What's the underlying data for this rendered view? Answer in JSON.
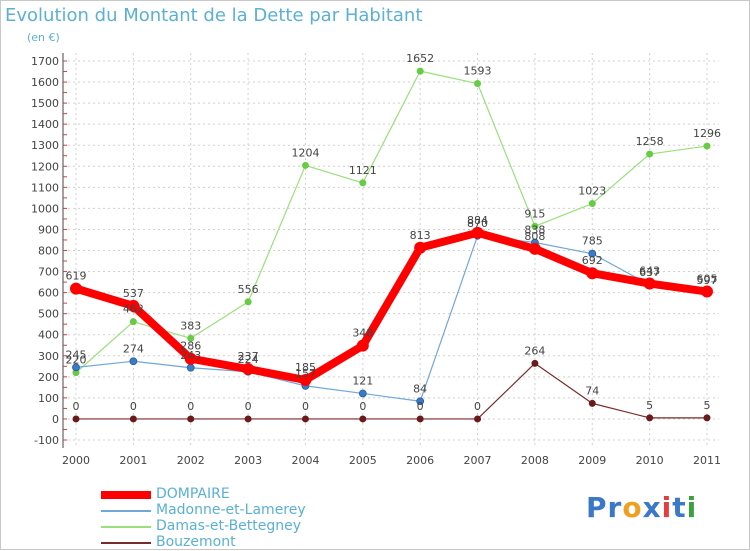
{
  "chart_data": {
    "type": "line",
    "title": "Evolution du Montant de la Dette par Habitant",
    "subtitle": "(en €)",
    "xlabel": "",
    "ylabel": "",
    "x": [
      "2000",
      "2001",
      "2002",
      "2003",
      "2004",
      "2005",
      "2006",
      "2007",
      "2008",
      "2009",
      "2010",
      "2011"
    ],
    "ylim": [
      -100,
      1700
    ],
    "yticks": [
      -100,
      0,
      100,
      200,
      300,
      400,
      500,
      600,
      700,
      800,
      900,
      1000,
      1100,
      1200,
      1300,
      1400,
      1500,
      1600,
      1700
    ],
    "grid": true,
    "legend_position": "bottom-left",
    "series": [
      {
        "name": "DOMPAIRE",
        "color": "#ff0000",
        "marker": "#ff0000",
        "values": [
          619,
          537,
          286,
          237,
          185,
          348,
          813,
          884,
          808,
          692,
          643,
          605
        ]
      },
      {
        "name": "Madonne-et-Lamerey",
        "color": "#6fa8d8",
        "marker": "#3a7bc8",
        "values": [
          245,
          274,
          243,
          224,
          157,
          121,
          84,
          870,
          838,
          785,
          637,
          597
        ]
      },
      {
        "name": "Damas-et-Bettegney",
        "color": "#99e07a",
        "marker": "#66cc44",
        "values": [
          220,
          462,
          383,
          556,
          1204,
          1121,
          1652,
          1593,
          915,
          1023,
          1258,
          1296
        ]
      },
      {
        "name": "Bouzemont",
        "color": "#7a2a2a",
        "marker": "#6a1a1a",
        "values": [
          0,
          0,
          0,
          0,
          0,
          0,
          0,
          0,
          264,
          74,
          5,
          5
        ]
      }
    ]
  },
  "brand": {
    "letters": [
      "P",
      "r",
      "o",
      "x",
      "i",
      "t",
      "i"
    ],
    "colors": [
      "#3a78c8",
      "#3a78c8",
      "#f0a020",
      "#3a78c8",
      "#e04040",
      "#3a78c8",
      "#3aa040"
    ]
  }
}
